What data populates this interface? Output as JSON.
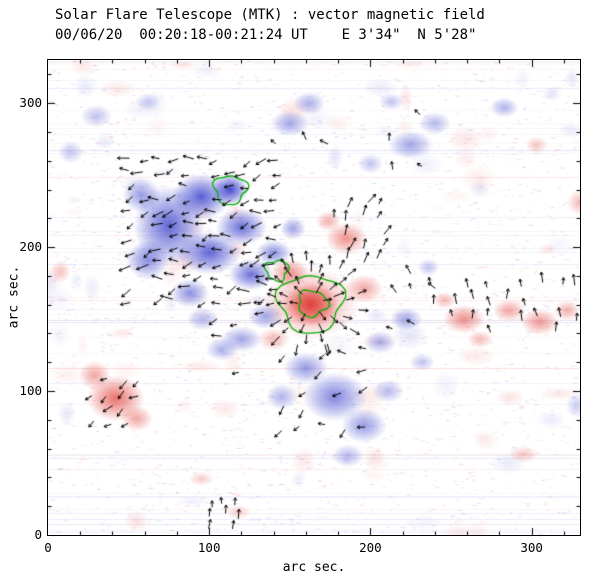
{
  "header": {
    "title": "Solar Flare Telescope (MTK) : vector magnetic field",
    "subtitle": "00/06/20  00:20:18-00:21:24 UT    E 3'34\"  N 5'28\""
  },
  "chart_data": {
    "type": "heatmap",
    "title": "Solar Flare Telescope (MTK) : vector magnetic field",
    "subtitle": "00/06/20  00:20:18-00:21:24 UT    E 3'34\"  N 5'28\"",
    "xlabel": "arc sec.",
    "ylabel": "arc sec.",
    "xlim": [
      0,
      330
    ],
    "ylim": [
      0,
      330
    ],
    "xticks": [
      0,
      100,
      200,
      300
    ],
    "yticks": [
      0,
      100,
      200,
      300
    ],
    "minor_tick_step": 20,
    "grid": false,
    "legend": "none",
    "colors": {
      "positive": "#e03830",
      "negative": "#2e35c8",
      "contour": "#00b000",
      "axis": "#000000",
      "background": "#ffffff"
    },
    "polarity_blobs_format": "[x_arcsec, y_arcsec, rx, ry, polarity(+1=red positive, -1=blue negative), intensity_0_1]",
    "polarity_blobs": [
      [
        75,
        215,
        22,
        28,
        -1,
        0.75
      ],
      [
        95,
        235,
        18,
        16,
        -1,
        0.8
      ],
      [
        100,
        196,
        20,
        15,
        -1,
        0.75
      ],
      [
        120,
        214,
        16,
        13,
        -1,
        0.7
      ],
      [
        113,
        240,
        11,
        11,
        -1,
        0.9
      ],
      [
        126,
        181,
        14,
        11,
        -1,
        0.7
      ],
      [
        140,
        196,
        11,
        9,
        -1,
        0.55
      ],
      [
        62,
        191,
        13,
        14,
        -1,
        0.55
      ],
      [
        58,
        236,
        12,
        12,
        -1,
        0.5
      ],
      [
        88,
        168,
        12,
        10,
        -1,
        0.55
      ],
      [
        135,
        152,
        11,
        9,
        -1,
        0.45
      ],
      [
        120,
        136,
        13,
        9,
        -1,
        0.45
      ],
      [
        152,
        213,
        8,
        8,
        -1,
        0.45
      ],
      [
        150,
        286,
        12,
        9,
        -1,
        0.45
      ],
      [
        162,
        300,
        10,
        8,
        -1,
        0.4
      ],
      [
        225,
        271,
        14,
        10,
        -1,
        0.45
      ],
      [
        240,
        286,
        10,
        8,
        -1,
        0.35
      ],
      [
        30,
        291,
        10,
        8,
        -1,
        0.3
      ],
      [
        14,
        266,
        8,
        8,
        -1,
        0.28
      ],
      [
        62,
        301,
        8,
        6,
        -1,
        0.25
      ],
      [
        283,
        297,
        9,
        7,
        -1,
        0.38
      ],
      [
        213,
        301,
        8,
        6,
        -1,
        0.3
      ],
      [
        200,
        258,
        8,
        7,
        -1,
        0.3
      ],
      [
        222,
        150,
        10,
        8,
        -1,
        0.45
      ],
      [
        236,
        186,
        7,
        6,
        -1,
        0.3
      ],
      [
        206,
        134,
        10,
        8,
        -1,
        0.4
      ],
      [
        232,
        120,
        8,
        6,
        -1,
        0.3
      ],
      [
        178,
        96,
        20,
        17,
        -1,
        0.6
      ],
      [
        196,
        76,
        14,
        12,
        -1,
        0.5
      ],
      [
        160,
        116,
        14,
        11,
        -1,
        0.5
      ],
      [
        145,
        96,
        10,
        9,
        -1,
        0.38
      ],
      [
        186,
        55,
        10,
        8,
        -1,
        0.35
      ],
      [
        211,
        100,
        10,
        8,
        -1,
        0.35
      ],
      [
        96,
        150,
        10,
        8,
        -1,
        0.35
      ],
      [
        108,
        129,
        10,
        8,
        -1,
        0.4
      ],
      [
        328,
        90,
        7,
        9,
        -1,
        0.25
      ],
      [
        163,
        160,
        17,
        15,
        1,
        0.92
      ],
      [
        163,
        161,
        30,
        25,
        1,
        0.45
      ],
      [
        150,
        182,
        12,
        10,
        1,
        0.55
      ],
      [
        185,
        206,
        13,
        11,
        1,
        0.55
      ],
      [
        174,
        218,
        8,
        7,
        1,
        0.4
      ],
      [
        196,
        171,
        12,
        10,
        1,
        0.45
      ],
      [
        140,
        136,
        10,
        8,
        1,
        0.35
      ],
      [
        42,
        95,
        18,
        16,
        1,
        0.7
      ],
      [
        29,
        111,
        10,
        10,
        1,
        0.45
      ],
      [
        55,
        81,
        10,
        9,
        1,
        0.45
      ],
      [
        258,
        150,
        13,
        10,
        1,
        0.55
      ],
      [
        286,
        156,
        10,
        8,
        1,
        0.45
      ],
      [
        305,
        148,
        12,
        9,
        1,
        0.5
      ],
      [
        322,
        156,
        8,
        7,
        1,
        0.4
      ],
      [
        268,
        136,
        8,
        6,
        1,
        0.35
      ],
      [
        246,
        163,
        7,
        6,
        1,
        0.35
      ],
      [
        330,
        231,
        8,
        9,
        1,
        0.35
      ],
      [
        295,
        56,
        9,
        6,
        1,
        0.28
      ],
      [
        303,
        271,
        7,
        6,
        1,
        0.3
      ],
      [
        95,
        39,
        8,
        5,
        1,
        0.26
      ],
      [
        118,
        16,
        8,
        5,
        1,
        0.24
      ],
      [
        8,
        183,
        6,
        8,
        1,
        0.3
      ]
    ],
    "contours": [
      {
        "cx": 163,
        "cy": 161,
        "r": 20,
        "wobble": 0.18,
        "seed": 11
      },
      {
        "cx": 164,
        "cy": 161,
        "r": 9,
        "wobble": 0.22,
        "seed": 12
      },
      {
        "cx": 142,
        "cy": 184,
        "r": 7,
        "wobble": 0.25,
        "seed": 13
      },
      {
        "cx": 113,
        "cy": 240,
        "r": 10,
        "wobble": 0.22,
        "seed": 14
      }
    ],
    "vector_clusters": [
      {
        "type": "grid",
        "seed": 21,
        "x": [
          52,
          150
        ],
        "y": [
          162,
          262
        ],
        "step": 9,
        "angle": 195,
        "jitter": 35,
        "skip": 0.2,
        "len": 10
      },
      {
        "type": "radial",
        "seed": 22,
        "cx": 163,
        "cy": 161,
        "rings": [
          8,
          15,
          22,
          30
        ],
        "counts": [
          6,
          10,
          13,
          15
        ],
        "len": 10
      },
      {
        "type": "grid",
        "seed": 23,
        "x": [
          240,
          330
        ],
        "y": [
          140,
          176
        ],
        "step": 11,
        "angle": 95,
        "jitter": 18,
        "skip": 0.3,
        "len": 9
      },
      {
        "type": "grid",
        "seed": 24,
        "x": [
          176,
          214
        ],
        "y": [
          190,
          230
        ],
        "step": 10,
        "angle": 70,
        "jitter": 25,
        "skip": 0.3,
        "len": 9
      },
      {
        "type": "grid",
        "seed": 25,
        "x": [
          28,
          60
        ],
        "y": [
          78,
          112
        ],
        "step": 10,
        "angle": 215,
        "jitter": 25,
        "skip": 0.28,
        "len": 9
      },
      {
        "type": "grid",
        "seed": 26,
        "x": [
          145,
          205
        ],
        "y": [
          75,
          130
        ],
        "step": 13,
        "angle": 200,
        "jitter": 45,
        "skip": 0.45,
        "len": 8
      },
      {
        "type": "grid",
        "seed": 27,
        "x": [
          102,
          118
        ],
        "y": [
          6,
          26
        ],
        "step": 7,
        "angle": 90,
        "jitter": 12,
        "skip": 0.08,
        "len": 8
      },
      {
        "type": "grid",
        "seed": 28,
        "x": [
          140,
          262
        ],
        "y": [
          255,
          300
        ],
        "step": 18,
        "angle": 120,
        "jitter": 45,
        "skip": 0.55,
        "len": 7
      },
      {
        "type": "grid",
        "seed": 29,
        "x": [
          85,
          122
        ],
        "y": [
          115,
          150
        ],
        "step": 11,
        "angle": 205,
        "jitter": 30,
        "skip": 0.4,
        "len": 8
      },
      {
        "type": "grid",
        "seed": 30,
        "x": [
          214,
          240
        ],
        "y": [
          145,
          192
        ],
        "step": 12,
        "angle": 130,
        "jitter": 45,
        "skip": 0.5,
        "len": 8
      }
    ],
    "noise": {
      "seed": 7,
      "speckle_count": 3000,
      "streak_count": 50,
      "cloud_count": 90
    }
  }
}
